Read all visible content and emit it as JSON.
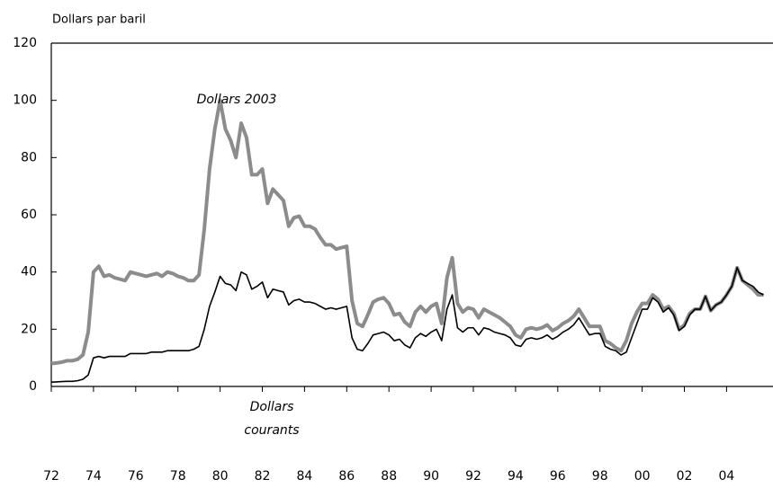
{
  "chart_data": {
    "type": "line",
    "y_axis_label": "Dollars par baril",
    "x": [
      1972,
      1972.25,
      1972.5,
      1972.75,
      1973,
      1973.25,
      1973.5,
      1973.75,
      1974,
      1974.25,
      1974.5,
      1974.75,
      1975,
      1975.25,
      1975.5,
      1975.75,
      1976,
      1976.25,
      1976.5,
      1976.75,
      1977,
      1977.25,
      1977.5,
      1977.75,
      1978,
      1978.25,
      1978.5,
      1978.75,
      1979,
      1979.25,
      1979.5,
      1979.75,
      1980,
      1980.25,
      1980.5,
      1980.75,
      1981,
      1981.25,
      1981.5,
      1981.75,
      1982,
      1982.25,
      1982.5,
      1982.75,
      1983,
      1983.25,
      1983.5,
      1983.75,
      1984,
      1984.25,
      1984.5,
      1984.75,
      1985,
      1985.25,
      1985.5,
      1985.75,
      1986,
      1986.25,
      1986.5,
      1986.75,
      1987,
      1987.25,
      1987.5,
      1987.75,
      1988,
      1988.25,
      1988.5,
      1988.75,
      1989,
      1989.25,
      1989.5,
      1989.75,
      1990,
      1990.25,
      1990.5,
      1990.75,
      1991,
      1991.25,
      1991.5,
      1991.75,
      1992,
      1992.25,
      1992.5,
      1992.75,
      1993,
      1993.25,
      1993.5,
      1993.75,
      1994,
      1994.25,
      1994.5,
      1994.75,
      1995,
      1995.25,
      1995.5,
      1995.75,
      1996,
      1996.25,
      1996.5,
      1996.75,
      1997,
      1997.25,
      1997.5,
      1997.75,
      1998,
      1998.25,
      1998.5,
      1998.75,
      1999,
      1999.25,
      1999.5,
      1999.75,
      2000,
      2000.25,
      2000.5,
      2000.75,
      2001,
      2001.25,
      2001.5,
      2001.75,
      2002,
      2002.25,
      2002.5,
      2002.75,
      2003,
      2003.25,
      2003.5,
      2003.75,
      2004,
      2004.25,
      2004.5,
      2004.75,
      2005,
      2005.25,
      2005.5,
      2005.75
    ],
    "series": [
      {
        "name": "Dollars 2003",
        "color": "#8c8c8c",
        "values": [
          8,
          8.2,
          8.5,
          9,
          9,
          9.5,
          11,
          19,
          40,
          42,
          38.5,
          39,
          38,
          37.5,
          37,
          40,
          39.5,
          39,
          38.5,
          39,
          39.5,
          38.5,
          40,
          39.5,
          38.5,
          38,
          37,
          37,
          39,
          55,
          76,
          90,
          100,
          90,
          86,
          80,
          92,
          87,
          74,
          74,
          76,
          64,
          69,
          67,
          65,
          56,
          59,
          59.5,
          56,
          56,
          55,
          52,
          49.5,
          49.5,
          48,
          48.5,
          49,
          30,
          22,
          21,
          25,
          29.5,
          30.5,
          31,
          29,
          25,
          25.5,
          22.5,
          21,
          26,
          28,
          26,
          28,
          29,
          22,
          38,
          45,
          29,
          26,
          27.5,
          27,
          24,
          27,
          26,
          25,
          24,
          22.5,
          21,
          18,
          17,
          20,
          20.5,
          20,
          20.5,
          21.5,
          19.5,
          20.5,
          22,
          23,
          24.5,
          27,
          24,
          21,
          21,
          21,
          16,
          15,
          13.5,
          12.5,
          16,
          22,
          26,
          29,
          29,
          32,
          30.5,
          27,
          28,
          25.5,
          20,
          21.5,
          25.5,
          27,
          27,
          31.5,
          26.5,
          28.5,
          29.5,
          32,
          35,
          41.5,
          37,
          35.5,
          34,
          32,
          32
        ]
      },
      {
        "name": "Dollars courants",
        "color": "#000000",
        "values": [
          1.5,
          1.6,
          1.7,
          1.8,
          1.8,
          2,
          2.5,
          4,
          10,
          10.5,
          10,
          10.5,
          10.5,
          10.5,
          10.5,
          11.5,
          11.5,
          11.5,
          11.5,
          12,
          12,
          12,
          12.5,
          12.5,
          12.5,
          12.5,
          12.5,
          13,
          14,
          20,
          28,
          33,
          38.5,
          36,
          35.5,
          33.5,
          40,
          39,
          34,
          35,
          36.5,
          31,
          34,
          33.5,
          33,
          28.5,
          30,
          30.5,
          29.5,
          29.5,
          29,
          28,
          27,
          27.5,
          27,
          27.5,
          28,
          17,
          13,
          12.5,
          15,
          18,
          18.5,
          19,
          18,
          16,
          16.5,
          14.5,
          13.5,
          17,
          18.5,
          17.5,
          19,
          20,
          16,
          27,
          32,
          20.5,
          19,
          20.5,
          20.5,
          18,
          20.5,
          20,
          19,
          18.5,
          18,
          17,
          14.5,
          14,
          16.5,
          17,
          16.5,
          17,
          18,
          16.5,
          17.5,
          19,
          20,
          21.5,
          24,
          21,
          18,
          18.5,
          18.5,
          14,
          13,
          12.5,
          11,
          12,
          17,
          22,
          27,
          27,
          31,
          29.5,
          26,
          27.5,
          25,
          19.5,
          21,
          25,
          27,
          27,
          31.5,
          26.5,
          28.5,
          29.5,
          32,
          35,
          41.5,
          37,
          36,
          35,
          33,
          32
        ]
      }
    ],
    "xlim": [
      1972,
      2006.2
    ],
    "xticks": [
      {
        "value": 1972,
        "label": "72"
      },
      {
        "value": 1974,
        "label": "74"
      },
      {
        "value": 1976,
        "label": "76"
      },
      {
        "value": 1978,
        "label": "78"
      },
      {
        "value": 1980,
        "label": "80"
      },
      {
        "value": 1982,
        "label": "82"
      },
      {
        "value": 1984,
        "label": "84"
      },
      {
        "value": 1986,
        "label": "86"
      },
      {
        "value": 1988,
        "label": "88"
      },
      {
        "value": 1990,
        "label": "90"
      },
      {
        "value": 1992,
        "label": "92"
      },
      {
        "value": 1994,
        "label": "94"
      },
      {
        "value": 1996,
        "label": "96"
      },
      {
        "value": 1998,
        "label": "98"
      },
      {
        "value": 2000,
        "label": "00"
      },
      {
        "value": 2002,
        "label": "02"
      },
      {
        "value": 2004,
        "label": "04"
      }
    ],
    "ylim": [
      0,
      120
    ],
    "yticks": [
      0,
      20,
      40,
      60,
      80,
      100,
      120
    ]
  }
}
